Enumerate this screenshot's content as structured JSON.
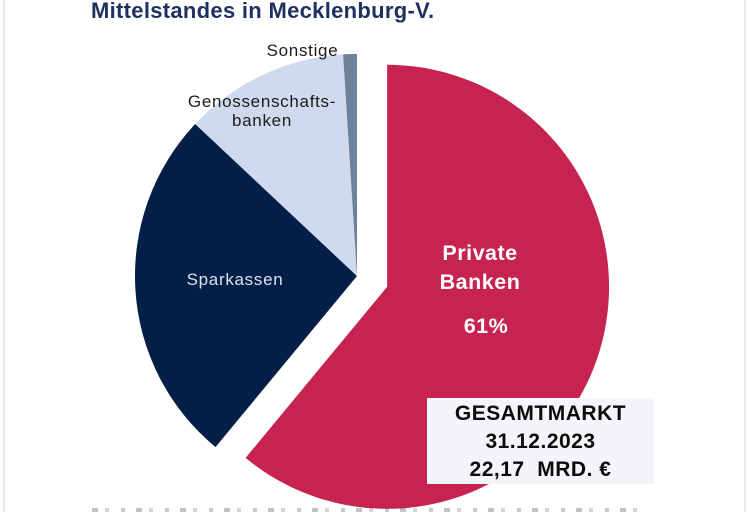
{
  "header": {
    "title": "Mittelstandes in Mecklenburg-V."
  },
  "chart_data": {
    "type": "pie",
    "title": "Mittelstandes in Mecklenburg-V.",
    "legend_position": "none",
    "start_angle_deg": 0,
    "direction": "clockwise",
    "slices": [
      {
        "label": "Private Banken",
        "label_lines": [
          "Private",
          "Banken"
        ],
        "percent_label": "61%",
        "value_pct": 61,
        "color": "#c72350",
        "label_color": "#ffffff",
        "exploded": true
      },
      {
        "label": "Sparkassen",
        "label_lines": [
          "Sparkassen"
        ],
        "value_pct": 26,
        "color": "#041f47",
        "label_color": "#dce1ee",
        "exploded": false
      },
      {
        "label": "Genossenschaftsbanken",
        "label_lines": [
          "Genossenschafts-",
          "banken"
        ],
        "value_pct": 12,
        "color": "#d0daee",
        "label_color": "#1b1b1b",
        "exploded": false
      },
      {
        "label": "Sonstige",
        "label_lines": [
          "Sonstige"
        ],
        "value_pct": 1,
        "color": "#6f809b",
        "label_color": "#1b1b1b",
        "exploded": false
      }
    ],
    "annotation_box": {
      "line1": "GESAMTMARKT",
      "line2": "31.12.2023",
      "line3": "22,17  MRD. €"
    }
  }
}
